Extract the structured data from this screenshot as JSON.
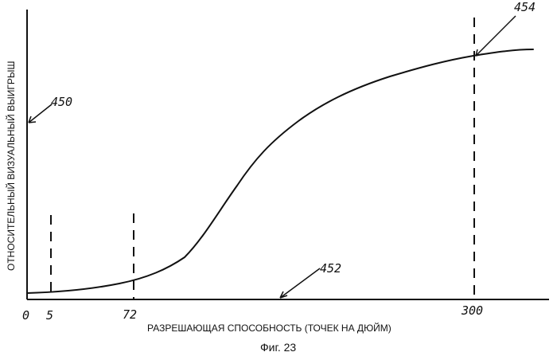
{
  "chart_data": {
    "type": "line",
    "xlabel": "РАЗРЕШАЮЩАЯ СПОСОБНОСТЬ (ТОЧЕК НА ДЮЙМ)",
    "ylabel": "ОТНОСИТЕЛЬНЫЙ ВИЗУАЛЬНЫЙ ВЫИГРЫШ",
    "caption": "Фиг. 23",
    "x_ticks": [
      "0",
      "5",
      "72",
      "300"
    ],
    "reference_lines_x": [
      5,
      72,
      300
    ],
    "annotations": [
      {
        "text": "450",
        "target": "y-axis"
      },
      {
        "text": "452",
        "target": "x-axis"
      },
      {
        "text": "454",
        "target": "curve at 300"
      }
    ],
    "grid": false
  }
}
